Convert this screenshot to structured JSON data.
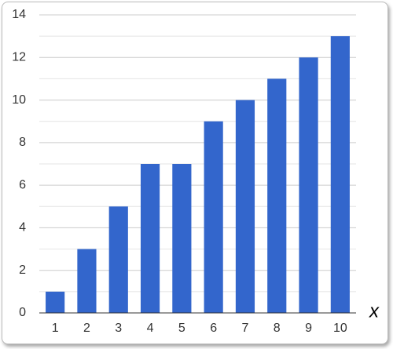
{
  "chart_data": {
    "type": "bar",
    "x_label": "x",
    "categories": [
      "1",
      "2",
      "3",
      "4",
      "5",
      "6",
      "7",
      "8",
      "9",
      "10"
    ],
    "values": [
      1,
      3,
      5,
      7,
      7,
      9,
      10,
      11,
      12,
      13
    ],
    "color": "#3366cc",
    "ylim": [
      0,
      14
    ],
    "yticks": [
      0,
      2,
      4,
      6,
      8,
      10,
      12,
      14
    ],
    "minor_yticks": [
      1,
      3,
      5,
      7,
      9,
      11,
      13
    ],
    "grid": true
  }
}
